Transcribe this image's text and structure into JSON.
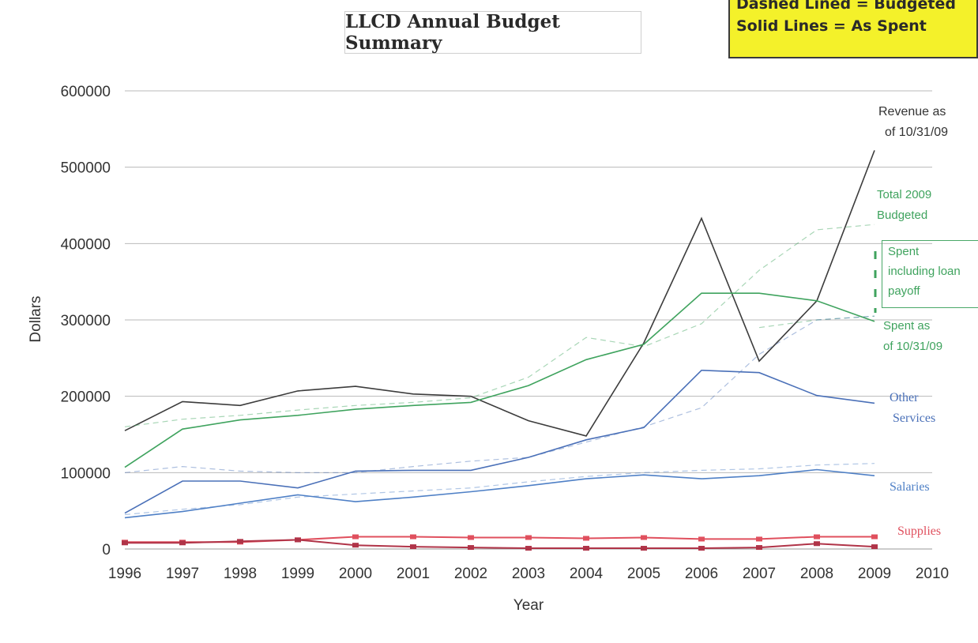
{
  "chart_data": {
    "type": "line",
    "title": "LLCD Annual Budget Summary",
    "xlabel": "Year",
    "ylabel": "Dollars",
    "xlim": [
      1996,
      2010
    ],
    "ylim": [
      0,
      600000
    ],
    "x_ticks": [
      "1996",
      "1997",
      "1998",
      "1999",
      "2000",
      "2001",
      "2002",
      "2003",
      "2004",
      "2005",
      "2006",
      "2007",
      "2008",
      "2009",
      "2010"
    ],
    "y_ticks": [
      "0",
      "100000",
      "200000",
      "300000",
      "400000",
      "500000",
      "600000"
    ],
    "grid": true,
    "legend_note": {
      "line1": "Dashed Lined = Budgeted",
      "line2": "Solid Lines = As Spent",
      "placement": "top-right"
    },
    "annotations": {
      "revenue": [
        "Revenue as",
        "of 10/31/09"
      ],
      "total_budgeted": [
        "Total 2009",
        "Budgeted"
      ],
      "spent_loan": [
        "Spent",
        "including loan",
        "payoff"
      ],
      "spent_1031": [
        "Spent as",
        "of 10/31/09"
      ],
      "other_services": [
        "Other",
        "Services"
      ],
      "salaries": "Salaries",
      "supplies": "Supplies"
    },
    "colors": {
      "revenue": "#3c3c3c",
      "total": "#3fa35e",
      "other": "#4a70b8",
      "salaries": "#4f80c6",
      "supplies": "#e0505e",
      "supplies_dark": "#b03448"
    },
    "series": [
      {
        "key": "revenue",
        "style": "solid",
        "x": [
          1996,
          1997,
          1998,
          1999,
          2000,
          2001,
          2002,
          2003,
          2004,
          2005,
          2006,
          2007,
          2008,
          2009
        ],
        "y": [
          155000,
          193000,
          188000,
          207000,
          213000,
          203000,
          200000,
          168000,
          148000,
          270000,
          433000,
          246000,
          325000,
          522000
        ]
      },
      {
        "key": "total",
        "style": "solid",
        "x": [
          1996,
          1997,
          1998,
          1999,
          2000,
          2001,
          2002,
          2003,
          2004,
          2005,
          2006,
          2007,
          2008,
          2009
        ],
        "y": [
          107000,
          157000,
          169000,
          175000,
          183000,
          188000,
          192000,
          214000,
          248000,
          268000,
          335000,
          335000,
          325000,
          298000
        ]
      },
      {
        "key": "total",
        "style": "dashed",
        "x": [
          1996,
          1997,
          1998,
          1999,
          2000,
          2001,
          2002,
          2003,
          2004,
          2005,
          2006,
          2007,
          2008,
          2009
        ],
        "y": [
          160000,
          170000,
          175000,
          182000,
          188000,
          192000,
          198000,
          225000,
          277000,
          265000,
          295000,
          365000,
          418000,
          425000
        ]
      },
      {
        "key": "total",
        "style": "dashed",
        "x": [
          2007,
          2008,
          2009
        ],
        "y": [
          290000,
          300000,
          305000
        ]
      },
      {
        "key": "other",
        "style": "solid",
        "x": [
          1996,
          1997,
          1998,
          1999,
          2000,
          2001,
          2002,
          2003,
          2004,
          2005,
          2006,
          2007,
          2008,
          2009
        ],
        "y": [
          47000,
          89000,
          89000,
          80000,
          102000,
          103000,
          103000,
          120000,
          143000,
          159000,
          234000,
          231000,
          201000,
          191000
        ]
      },
      {
        "key": "other",
        "style": "dashed",
        "x": [
          1996,
          1997,
          1998,
          1999,
          2000,
          2001,
          2002,
          2003,
          2004,
          2005,
          2006,
          2007,
          2008,
          2009
        ],
        "y": [
          100000,
          108000,
          102000,
          100000,
          100000,
          108000,
          115000,
          120000,
          140000,
          160000,
          185000,
          255000,
          300000,
          305000
        ]
      },
      {
        "key": "salaries",
        "style": "solid",
        "x": [
          1996,
          1997,
          1998,
          1999,
          2000,
          2001,
          2002,
          2003,
          2004,
          2005,
          2006,
          2007,
          2008,
          2009
        ],
        "y": [
          41000,
          49000,
          60000,
          71000,
          62000,
          68000,
          75000,
          83000,
          92000,
          97000,
          92000,
          96000,
          104000,
          96000
        ]
      },
      {
        "key": "salaries",
        "style": "dashed",
        "x": [
          1996,
          1997,
          1998,
          1999,
          2000,
          2001,
          2002,
          2003,
          2004,
          2005,
          2006,
          2007,
          2008,
          2009
        ],
        "y": [
          45000,
          52000,
          58000,
          68000,
          72000,
          76000,
          80000,
          88000,
          95000,
          100000,
          103000,
          105000,
          110000,
          112000
        ]
      },
      {
        "key": "supplies",
        "style": "solid",
        "markers": true,
        "x": [
          1996,
          1997,
          1998,
          1999,
          2000,
          2001,
          2002,
          2003,
          2004,
          2005,
          2006,
          2007,
          2008,
          2009
        ],
        "y": [
          9000,
          9000,
          9000,
          12000,
          16000,
          16000,
          15000,
          15000,
          14000,
          15000,
          13000,
          13000,
          16000,
          16000
        ]
      },
      {
        "key": "supplies_dark",
        "style": "solid",
        "markers": true,
        "x": [
          1996,
          1997,
          1998,
          1999,
          2000,
          2001,
          2002,
          2003,
          2004,
          2005,
          2006,
          2007,
          2008,
          2009
        ],
        "y": [
          8000,
          8000,
          10000,
          12000,
          5000,
          3000,
          2000,
          1000,
          1000,
          1000,
          1000,
          2000,
          7000,
          3000
        ]
      }
    ]
  }
}
